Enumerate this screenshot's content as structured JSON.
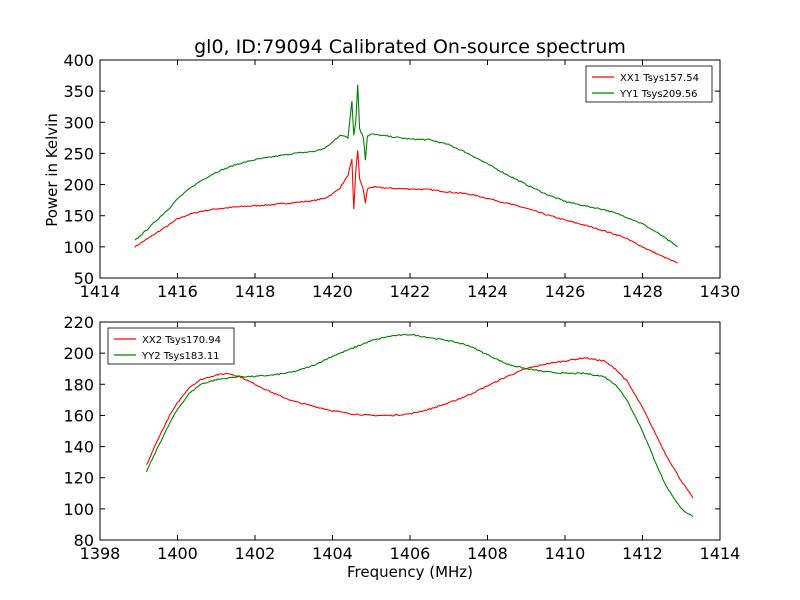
{
  "figure": {
    "title": "gl0, ID:79094 Calibrated On-source spectrum",
    "xlabel": "Frequency (MHz)",
    "ylabel_top": "Power in Kelvin"
  },
  "chart_data": [
    {
      "type": "line",
      "title": "gl0, ID:79094 Calibrated On-source spectrum",
      "xlabel": "",
      "ylabel": "Power in Kelvin",
      "xlim": [
        1414,
        1430
      ],
      "ylim": [
        50,
        400
      ],
      "xticks": [
        1414,
        1416,
        1418,
        1420,
        1422,
        1424,
        1426,
        1428,
        1430
      ],
      "yticks": [
        50,
        100,
        150,
        200,
        250,
        300,
        350,
        400
      ],
      "grid": false,
      "legend": "top-right",
      "series": [
        {
          "name": "XX1 Tsys157.54",
          "color": "#ff0000",
          "x": [
            1414.9,
            1415.2,
            1415.5,
            1415.8,
            1416.0,
            1416.3,
            1416.6,
            1417.0,
            1417.5,
            1418.0,
            1418.5,
            1419.0,
            1419.5,
            1419.8,
            1420.0,
            1420.2,
            1420.4,
            1420.5,
            1420.55,
            1420.6,
            1420.65,
            1420.7,
            1420.8,
            1420.85,
            1420.9,
            1421.0,
            1421.5,
            1422.0,
            1422.5,
            1423.0,
            1423.5,
            1424.0,
            1424.5,
            1425.0,
            1425.5,
            1426.0,
            1426.5,
            1427.0,
            1427.5,
            1428.0,
            1428.5,
            1428.9
          ],
          "y": [
            100,
            112,
            124,
            136,
            145,
            152,
            157,
            161,
            164,
            166,
            168,
            171,
            174,
            178,
            185,
            195,
            215,
            240,
            160,
            220,
            254,
            210,
            190,
            170,
            193,
            196,
            194,
            193,
            192,
            188,
            185,
            178,
            170,
            162,
            152,
            143,
            135,
            126,
            116,
            100,
            85,
            74
          ]
        },
        {
          "name": "YY1 Tsys209.56",
          "color": "#008000",
          "x": [
            1414.9,
            1415.2,
            1415.5,
            1415.8,
            1416.0,
            1416.3,
            1416.6,
            1417.0,
            1417.5,
            1418.0,
            1418.5,
            1419.0,
            1419.5,
            1419.8,
            1420.0,
            1420.2,
            1420.4,
            1420.5,
            1420.55,
            1420.6,
            1420.65,
            1420.7,
            1420.8,
            1420.85,
            1420.9,
            1421.0,
            1421.5,
            1422.0,
            1422.5,
            1423.0,
            1423.5,
            1424.0,
            1424.5,
            1425.0,
            1425.5,
            1426.0,
            1426.5,
            1427.0,
            1427.5,
            1428.0,
            1428.5,
            1428.9
          ],
          "y": [
            110,
            127,
            145,
            163,
            177,
            193,
            206,
            220,
            232,
            240,
            245,
            250,
            253,
            258,
            268,
            280,
            275,
            335,
            280,
            300,
            360,
            290,
            275,
            240,
            278,
            281,
            277,
            273,
            272,
            264,
            250,
            233,
            216,
            200,
            185,
            173,
            166,
            160,
            150,
            137,
            118,
            100
          ]
        }
      ]
    },
    {
      "type": "line",
      "title": "",
      "xlabel": "Frequency (MHz)",
      "ylabel": "",
      "xlim": [
        1398,
        1414
      ],
      "ylim": [
        80,
        220
      ],
      "xticks": [
        1398,
        1400,
        1402,
        1404,
        1406,
        1408,
        1410,
        1412,
        1414
      ],
      "yticks": [
        80,
        100,
        120,
        140,
        160,
        180,
        200,
        220
      ],
      "grid": false,
      "legend": "top-left",
      "series": [
        {
          "name": "XX2 Tsys170.94",
          "color": "#ff0000",
          "x": [
            1399.2,
            1399.5,
            1399.8,
            1400.0,
            1400.3,
            1400.6,
            1401.0,
            1401.3,
            1401.6,
            1402.0,
            1402.5,
            1403.0,
            1403.5,
            1404.0,
            1404.5,
            1405.0,
            1405.5,
            1406.0,
            1406.5,
            1407.0,
            1407.5,
            1408.0,
            1408.5,
            1409.0,
            1409.5,
            1410.0,
            1410.5,
            1411.0,
            1411.3,
            1411.6,
            1412.0,
            1412.3,
            1412.6,
            1413.0,
            1413.3
          ],
          "y": [
            128,
            145,
            160,
            168,
            178,
            183,
            186,
            187,
            185,
            180,
            174,
            169,
            166,
            163,
            161,
            160,
            160,
            161,
            164,
            168,
            173,
            179,
            185,
            190,
            193,
            195,
            197,
            195,
            190,
            182,
            165,
            150,
            135,
            118,
            107
          ]
        },
        {
          "name": "YY2 Tsys183.11",
          "color": "#008000",
          "x": [
            1399.2,
            1399.5,
            1399.8,
            1400.0,
            1400.3,
            1400.6,
            1401.0,
            1401.3,
            1401.6,
            1402.0,
            1402.5,
            1403.0,
            1403.5,
            1404.0,
            1404.5,
            1405.0,
            1405.5,
            1406.0,
            1406.5,
            1407.0,
            1407.5,
            1408.0,
            1408.5,
            1409.0,
            1409.5,
            1410.0,
            1410.5,
            1411.0,
            1411.3,
            1411.6,
            1412.0,
            1412.3,
            1412.6,
            1413.0,
            1413.3
          ],
          "y": [
            124,
            140,
            155,
            164,
            174,
            180,
            183,
            184,
            185,
            185,
            186,
            188,
            192,
            198,
            203,
            208,
            211,
            212,
            210,
            208,
            205,
            199,
            193,
            190,
            188,
            187,
            187,
            185,
            180,
            170,
            150,
            132,
            115,
            100,
            95
          ]
        }
      ]
    }
  ]
}
